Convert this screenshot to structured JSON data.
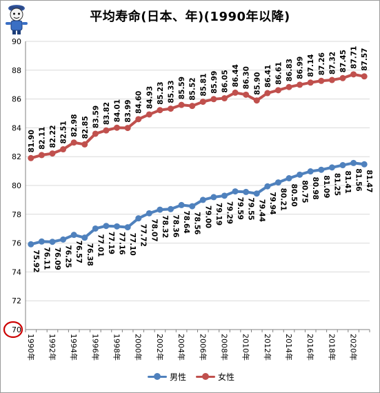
{
  "title": "平均寿命(日本、年)(1990年以降)",
  "colors": {
    "male": "#4F81BD",
    "female": "#C0504D",
    "highlight": "#CC0000",
    "grid": "#d9d9d9"
  },
  "mascot_icon": "mascot-character-icon",
  "chart_data": {
    "type": "line",
    "title": "平均寿命(日本、年)(1990年以降)",
    "xlabel": "",
    "ylabel": "",
    "ylim": [
      70,
      90
    ],
    "yticks": [
      70,
      72,
      74,
      76,
      78,
      80,
      82,
      84,
      86,
      88,
      90
    ],
    "highlighted_ytick": 70,
    "grid": "horizontal",
    "legend_position": "bottom",
    "x": [
      "1990年",
      "1991年",
      "1992年",
      "1993年",
      "1994年",
      "1995年",
      "1996年",
      "1997年",
      "1998年",
      "1999年",
      "2000年",
      "2001年",
      "2002年",
      "2003年",
      "2004年",
      "2005年",
      "2006年",
      "2007年",
      "2008年",
      "2009年",
      "2010年",
      "2011年",
      "2012年",
      "2013年",
      "2014年",
      "2015年",
      "2016年",
      "2017年",
      "2018年",
      "2019年",
      "2020年",
      "2021年"
    ],
    "xtick_labels": [
      "1990年",
      "1992年",
      "1994年",
      "1996年",
      "1998年",
      "2000年",
      "2002年",
      "2004年",
      "2006年",
      "2008年",
      "2010年",
      "2012年",
      "2014年",
      "2016年",
      "2018年",
      "2020年"
    ],
    "series": [
      {
        "name": "男性",
        "values": [
          75.92,
          76.11,
          76.09,
          76.25,
          76.57,
          76.38,
          77.01,
          77.19,
          77.16,
          77.1,
          77.72,
          78.07,
          78.32,
          78.36,
          78.64,
          78.56,
          79.0,
          79.19,
          79.29,
          79.59,
          79.55,
          79.44,
          79.94,
          80.21,
          80.5,
          80.75,
          80.98,
          81.09,
          81.25,
          81.41,
          81.56,
          81.47
        ],
        "labels": [
          "75.92",
          "76.11",
          "76.09",
          "76.25",
          "76.57",
          "76.38",
          "77.01",
          "77.19",
          "77.16",
          "77.10",
          "77.72",
          "78.07",
          "78.32",
          "78.36",
          "78.64",
          "78.56",
          "79.00",
          "79.19",
          "79.29",
          "79.59",
          "79.55",
          "79.44",
          "79.94",
          "80.21",
          "80.50",
          "80.75",
          "80.98",
          "81.09",
          "81.25",
          "81.41",
          "81.56",
          "81.47"
        ]
      },
      {
        "name": "女性",
        "values": [
          81.9,
          82.11,
          82.22,
          82.51,
          82.98,
          82.85,
          83.59,
          83.82,
          84.01,
          83.99,
          84.6,
          84.93,
          85.23,
          85.33,
          85.59,
          85.52,
          85.81,
          85.99,
          86.05,
          86.44,
          86.3,
          85.9,
          86.41,
          86.61,
          86.83,
          86.99,
          87.14,
          87.26,
          87.32,
          87.45,
          87.71,
          87.57
        ],
        "labels": [
          "81.90",
          "82.11",
          "82.22",
          "82.51",
          "82.98",
          "82.85",
          "83.59",
          "83.82",
          "84.01",
          "83.99",
          "84.60",
          "84.93",
          "85.23",
          "85.33",
          "85.59",
          "85.52",
          "85.81",
          "85.99",
          "86.05",
          "86.44",
          "86.30",
          "85.90",
          "86.41",
          "86.61",
          "86.83",
          "86.99",
          "87.14",
          "87.26",
          "87.32",
          "87.45",
          "87.71",
          "87.57"
        ]
      }
    ]
  }
}
